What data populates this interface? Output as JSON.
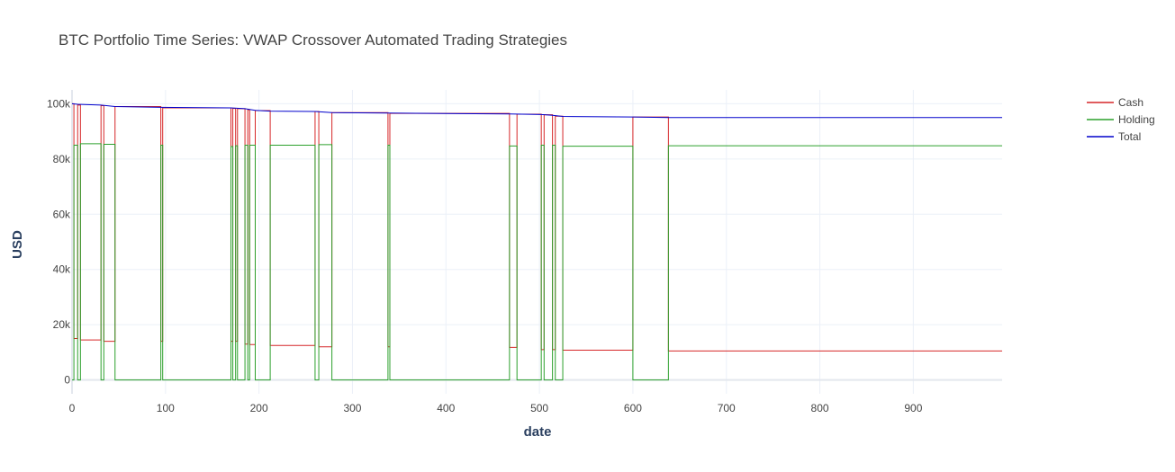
{
  "chart_data": {
    "type": "line",
    "title": "BTC Portfolio Time Series: VWAP Crossover Automated Trading Strategies",
    "xlabel": "date",
    "ylabel": "USD",
    "xlim": [
      0,
      995
    ],
    "ylim": [
      -5000,
      105000
    ],
    "x_ticks": [
      0,
      100,
      200,
      300,
      400,
      500,
      600,
      700,
      800,
      900
    ],
    "y_ticks": [
      0,
      20000,
      40000,
      60000,
      80000,
      100000
    ],
    "y_tick_labels": [
      "0",
      "20k",
      "40k",
      "60k",
      "80k",
      "100k"
    ],
    "grid": true,
    "legend_position": "top-right",
    "series": [
      {
        "name": "Cash",
        "color": "#d62728",
        "points": [
          [
            0,
            100000
          ],
          [
            2,
            100000
          ],
          [
            2,
            15000
          ],
          [
            6,
            15000
          ],
          [
            6,
            99500
          ],
          [
            9,
            99500
          ],
          [
            9,
            14500
          ],
          [
            31,
            14500
          ],
          [
            31,
            99300
          ],
          [
            34,
            99300
          ],
          [
            34,
            14000
          ],
          [
            46,
            14000
          ],
          [
            46,
            99000
          ],
          [
            95,
            99000
          ],
          [
            95,
            14000
          ],
          [
            97,
            14000
          ],
          [
            97,
            98500
          ],
          [
            170,
            98500
          ],
          [
            170,
            14000
          ],
          [
            172,
            14000
          ],
          [
            172,
            98300
          ],
          [
            175,
            98300
          ],
          [
            175,
            14000
          ],
          [
            177,
            14000
          ],
          [
            177,
            98200
          ],
          [
            185,
            98200
          ],
          [
            185,
            13000
          ],
          [
            188,
            13000
          ],
          [
            188,
            97800
          ],
          [
            190,
            97800
          ],
          [
            190,
            12800
          ],
          [
            196,
            12800
          ],
          [
            196,
            97500
          ],
          [
            212,
            97500
          ],
          [
            212,
            12500
          ],
          [
            260,
            12500
          ],
          [
            260,
            97200
          ],
          [
            264,
            97200
          ],
          [
            264,
            12000
          ],
          [
            278,
            12000
          ],
          [
            278,
            96800
          ],
          [
            338,
            96800
          ],
          [
            338,
            12000
          ],
          [
            340,
            12000
          ],
          [
            340,
            96500
          ],
          [
            468,
            96500
          ],
          [
            468,
            11800
          ],
          [
            476,
            11800
          ],
          [
            476,
            96200
          ],
          [
            502,
            96200
          ],
          [
            502,
            11000
          ],
          [
            505,
            11000
          ],
          [
            505,
            96000
          ],
          [
            514,
            96000
          ],
          [
            514,
            11000
          ],
          [
            517,
            11000
          ],
          [
            517,
            95500
          ],
          [
            525,
            95500
          ],
          [
            525,
            10800
          ],
          [
            600,
            10800
          ],
          [
            600,
            95200
          ],
          [
            638,
            95200
          ],
          [
            638,
            10500
          ],
          [
            995,
            10500
          ]
        ]
      },
      {
        "name": "Holding",
        "color": "#2ca02c",
        "points": [
          [
            0,
            0
          ],
          [
            2,
            0
          ],
          [
            2,
            85000
          ],
          [
            6,
            85000
          ],
          [
            6,
            0
          ],
          [
            9,
            0
          ],
          [
            9,
            85500
          ],
          [
            31,
            85500
          ],
          [
            31,
            0
          ],
          [
            34,
            0
          ],
          [
            34,
            85300
          ],
          [
            46,
            85300
          ],
          [
            46,
            0
          ],
          [
            95,
            0
          ],
          [
            95,
            85000
          ],
          [
            97,
            85000
          ],
          [
            97,
            0
          ],
          [
            170,
            0
          ],
          [
            170,
            84500
          ],
          [
            172,
            84500
          ],
          [
            172,
            0
          ],
          [
            175,
            0
          ],
          [
            175,
            84800
          ],
          [
            177,
            84800
          ],
          [
            177,
            0
          ],
          [
            185,
            0
          ],
          [
            185,
            85000
          ],
          [
            188,
            85000
          ],
          [
            188,
            0
          ],
          [
            190,
            0
          ],
          [
            190,
            85000
          ],
          [
            196,
            85000
          ],
          [
            196,
            0
          ],
          [
            212,
            0
          ],
          [
            212,
            85000
          ],
          [
            260,
            85000
          ],
          [
            260,
            0
          ],
          [
            264,
            0
          ],
          [
            264,
            85200
          ],
          [
            278,
            85200
          ],
          [
            278,
            0
          ],
          [
            338,
            0
          ],
          [
            338,
            85000
          ],
          [
            340,
            85000
          ],
          [
            340,
            0
          ],
          [
            468,
            0
          ],
          [
            468,
            84700
          ],
          [
            476,
            84700
          ],
          [
            476,
            0
          ],
          [
            502,
            0
          ],
          [
            502,
            85000
          ],
          [
            505,
            85000
          ],
          [
            505,
            0
          ],
          [
            514,
            0
          ],
          [
            514,
            85000
          ],
          [
            517,
            85000
          ],
          [
            517,
            0
          ],
          [
            525,
            0
          ],
          [
            525,
            84600
          ],
          [
            600,
            84600
          ],
          [
            600,
            0
          ],
          [
            638,
            0
          ],
          [
            638,
            84800
          ],
          [
            995,
            84800
          ]
        ]
      },
      {
        "name": "Total",
        "color": "#0000cc",
        "points": [
          [
            0,
            100000
          ],
          [
            6,
            99800
          ],
          [
            31,
            99500
          ],
          [
            46,
            99000
          ],
          [
            95,
            98700
          ],
          [
            170,
            98500
          ],
          [
            185,
            98200
          ],
          [
            196,
            97600
          ],
          [
            212,
            97300
          ],
          [
            260,
            97200
          ],
          [
            278,
            96800
          ],
          [
            338,
            96600
          ],
          [
            468,
            96300
          ],
          [
            502,
            96100
          ],
          [
            514,
            95800
          ],
          [
            525,
            95400
          ],
          [
            600,
            95200
          ],
          [
            638,
            95000
          ],
          [
            995,
            95000
          ]
        ]
      }
    ]
  }
}
